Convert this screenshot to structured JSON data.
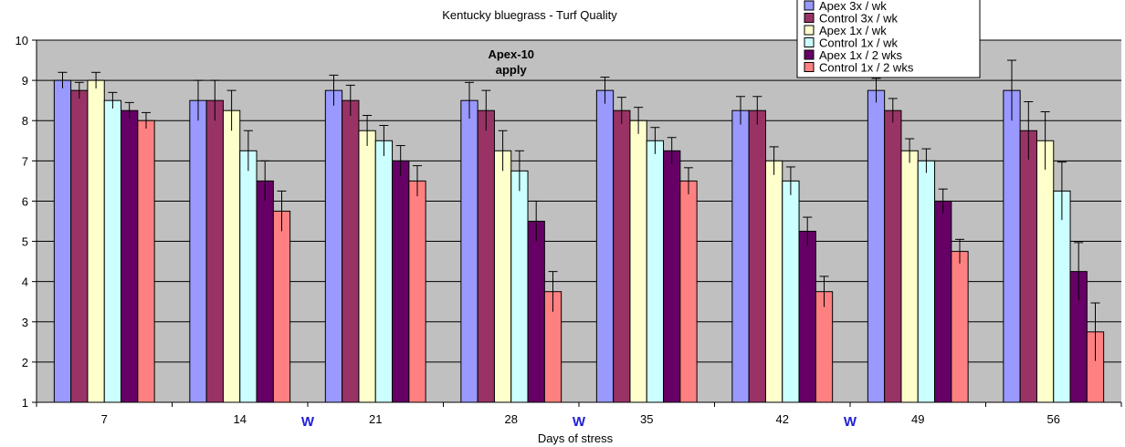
{
  "chart_data": {
    "type": "bar",
    "title": "Kentucky bluegrass - Turf Quality",
    "xlabel": "Days of stress",
    "ylabel": "",
    "ylim": [
      1,
      10
    ],
    "yticks": [
      "1",
      "2",
      "3",
      "4",
      "5",
      "6",
      "7",
      "8",
      "9",
      "10"
    ],
    "categories": [
      "7",
      "14",
      "21",
      "28",
      "35",
      "42",
      "49",
      "56"
    ],
    "grid": true,
    "legend_position": "top-right",
    "plot_background": "#c0c0c0",
    "series": [
      {
        "name": "Apex 3x / wk",
        "color": "#9999ff",
        "values": [
          9.0,
          8.5,
          8.75,
          8.5,
          8.75,
          8.25,
          8.75,
          8.75
        ],
        "errors": [
          0.2,
          0.5,
          0.38,
          0.45,
          0.33,
          0.35,
          0.3,
          0.75
        ]
      },
      {
        "name": "Control 3x / wk",
        "color": "#993366",
        "values": [
          8.75,
          8.5,
          8.5,
          8.25,
          8.25,
          8.25,
          8.25,
          7.75
        ],
        "errors": [
          0.2,
          0.5,
          0.38,
          0.5,
          0.33,
          0.35,
          0.3,
          0.72
        ]
      },
      {
        "name": "Apex 1x / wk",
        "color": "#ffffcc",
        "values": [
          9.0,
          8.25,
          7.75,
          7.25,
          8.0,
          7.0,
          7.25,
          7.5
        ],
        "errors": [
          0.2,
          0.5,
          0.38,
          0.5,
          0.33,
          0.35,
          0.3,
          0.72
        ]
      },
      {
        "name": "Control 1x / wk",
        "color": "#ccffff",
        "values": [
          8.5,
          7.25,
          7.5,
          6.75,
          7.5,
          6.5,
          7.0,
          6.25
        ],
        "errors": [
          0.2,
          0.5,
          0.38,
          0.5,
          0.33,
          0.35,
          0.3,
          0.72
        ]
      },
      {
        "name": "Apex 1x / 2 wks",
        "color": "#660066",
        "values": [
          8.25,
          6.5,
          7.0,
          5.5,
          7.25,
          5.25,
          6.0,
          4.25
        ],
        "errors": [
          0.2,
          0.5,
          0.38,
          0.5,
          0.33,
          0.35,
          0.3,
          0.72
        ]
      },
      {
        "name": "Control 1x / 2 wks",
        "color": "#ff8080",
        "values": [
          8.0,
          5.75,
          6.5,
          3.75,
          6.5,
          3.75,
          4.75,
          2.75
        ],
        "errors": [
          0.2,
          0.5,
          0.38,
          0.5,
          0.33,
          0.38,
          0.3,
          0.72
        ]
      }
    ],
    "annotations": [
      {
        "text_line1": "Apex-10",
        "text_line2": "apply",
        "above_category": "28"
      }
    ],
    "between_markers": [
      {
        "text": "W",
        "after_category": "14"
      },
      {
        "text": "W",
        "after_category": "28"
      },
      {
        "text": "W",
        "after_category": "42"
      }
    ]
  }
}
